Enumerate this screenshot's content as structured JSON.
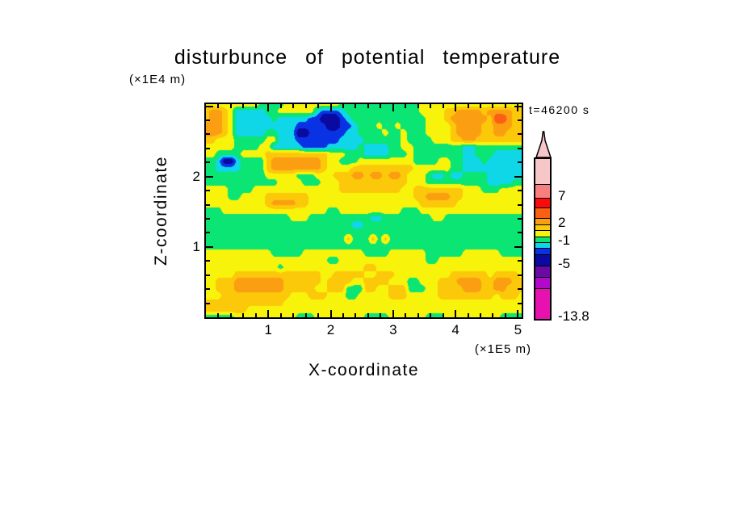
{
  "title": "disturbunce of potential temperature",
  "time_label": "t=46200 s",
  "axes": {
    "x": {
      "label": "X-coordinate",
      "unit": "(×1E5 m)",
      "max": 5.06,
      "minor_step": 0.2,
      "major_ticks": [
        "1",
        "2",
        "3",
        "4",
        "5"
      ]
    },
    "z": {
      "label": "Z-coordinate",
      "unit": "(×1E4 m)",
      "max": 3.03,
      "minor_step": 0.2,
      "major_ticks": [
        "1",
        "2"
      ]
    }
  },
  "colorbar": {
    "arrow_fill": "#f7c6c9",
    "segments": [
      {
        "color": "#f7c6c9",
        "h": 31
      },
      {
        "color": "#f87f7f",
        "h": 17
      },
      {
        "color": "#fa0a0a",
        "h": 12
      },
      {
        "color": "#fa5f14",
        "h": 13
      },
      {
        "color": "#fb9e12",
        "h": 8
      },
      {
        "color": "#fcc80a",
        "h": 7
      },
      {
        "color": "#f8f30a",
        "h": 8
      },
      {
        "color": "#0ae574",
        "h": 7
      },
      {
        "color": "#0fd7e8",
        "h": 7
      },
      {
        "color": "#0a32e5",
        "h": 8
      },
      {
        "color": "#0a0aa0",
        "h": 14
      },
      {
        "color": "#6a0aa5",
        "h": 14
      },
      {
        "color": "#b00ac8",
        "h": 14
      },
      {
        "color": "#e611ae",
        "h": 38
      }
    ],
    "labels": [
      {
        "text": "7",
        "y": 48
      },
      {
        "text": "2",
        "y": 81
      },
      {
        "text": "-1",
        "y": 103
      },
      {
        "text": "-5",
        "y": 132
      },
      {
        "text": "-13.8",
        "y": 197
      }
    ]
  },
  "chart_data": {
    "type": "heatmap",
    "subtype": "filled_contour",
    "title": "disturbunce of potential temperature",
    "xlabel": "X-coordinate (×1E5 m)",
    "ylabel": "Z-coordinate (×1E4 m)",
    "time_annotation": "t=46200 s",
    "x_range": [
      0,
      5.06
    ],
    "z_range": [
      0,
      3.03
    ],
    "x_major_ticks": [
      1,
      2,
      3,
      4,
      5
    ],
    "z_major_ticks": [
      1,
      2
    ],
    "colorbar_labeled_levels": [
      7,
      2,
      -1,
      -5,
      -13.8
    ],
    "levels": [
      -9,
      -7,
      -5,
      -3,
      -2,
      -1,
      0,
      1,
      2,
      3,
      5,
      7,
      9
    ],
    "level_colors": [
      "#e611ae",
      "#b00ac8",
      "#6a0aa5",
      "#0a0aa0",
      "#0a32e5",
      "#0fd7e8",
      "#0ae574",
      "#f8f30a",
      "#fcc80a",
      "#fb9e12",
      "#fa5f14",
      "#fa0a0a",
      "#f87f7f",
      "#f7c6c9"
    ],
    "grid": {
      "cols": 52,
      "rows": 31,
      "x_step": 0.1,
      "z_step": 0.1,
      "order": "top_row_is_z_max",
      "encoding": {
        "g": -0.5,
        "y": 0.5,
        "G": 1.5,
        "o": 2.5,
        "O": 4,
        "c": -1.5,
        "b": -2.5,
        "n": -4
      },
      "values": [
        "yyyyyyyyyggggyyyyyyyyygggggggggggggyyyyyyyyyyyyyyyyy",
        "GooGycccccggyyyyyycbbbcggggggggggggyyyyGGooooGooooGG",
        "GooGyccccccgcccccbbnnnbcggggggggggggyyyGooooooGOOoGG",
        "oooGyccccccccccbbbbbnnbbcgggyggyggggyyyyGooooGGoooGG",
        "oooGycccccggcccnnbbbbbbccggggyggygggyyyyGooooGGooGGG",
        "GGyyygggggyycccbbbbbbbccccggggggyggggyyyGGooGGGGGGGG",
        "yyyyyggggyycccccbbbbcccccgccccggyyggggggggccgggggggg",
        "yyggggyyyyGGGGGGGGGGyyygggccccgggyggggggggccgggccccc",
        "ggcnncggggGooooooooGyygggyyyyyyyyyggggyyggcccgcccccc",
        "ggccccggggGooooooooGyyyyGGGGGGGGGGyyyyyyggcccccccccc",
        "ggggggggggyyyyygggyyyGGGooGooGooGyyygccgccggggcccccc",
        "ggggggggggggyyyygggyyyGGGGGGGGGGGyyyggggggggggccccgg",
        "yyyyggggyyyyyyyyyyyyyyGGGGGGGGGGyyGGGGGGGGyyygggyyyy",
        "yyyyggyyyyGGGGGGGyyyyyyyyyyyyyyyyyGGooooGGyyyyyyyyyy",
        "yyyyyyyyyyGooooGGyyyyyyyyyyyyyyyyyyGGGGGGyyyyyyyyyyy",
        "gggyyyyyyyyyyyyyyyyyggyyyyyyyyyygggyyyyyyyyyyyyyyyyy",
        "ggggggggggggggyyyggggggggggccggggggggyyggggggggggggg",
        "ggggggggggggggggggggggggccgggggggggggggggggggggggggg",
        "gggggggggggggggggggggggggggggggggggggggggggggggggggg",
        "gggggggggggggggggggggggGgggGgGgggggggggggggggggggggg",
        "gggggggggggggggggggggggggggggggggggggggggggggggggggg",
        "yyyyyyyyyyygggggyyyyyyyyyyggggyyyyyyggggggyyyyyygggg",
        "yyyyyyyyyyyyyyyyyyyyggyyyyyyyyyyyyyyggyyyyyyyyyyyyyy",
        "yyyyyyyyyyyygyyyyyyyyyyyyyGGyyyyyyyyyyyyyyyyyyyyyyyy",
        "yyyyyGGGGGGGGGGGGGGyyGGGGGyyGGGyyyyyyyyyGGGGGGyGGGGy",
        "yyGGGooooooooGGGGGGyGGGGyyGGGGyyyggyyyGGGooooGGoooGG",
        "yyGGGooooooooGGGGGyyGGGgggGGyyGGGgggyyGGGGoooGGooGGG",
        "yyyGGGGGGGGGGGyyyGGGyyyggyyyyyGGGyyyyyGGGGGGGGGyGGGy",
        "GGGGGGGGGGGGGyyyyyyyyyyyyyyyyyyyyyyyyyyyyyyyyyyyyyyy",
        "GGGGGGGyyyyyyyyyyyyyyyyyyyyyyyyyyyyyyyyyyyyyyyyyyyyy",
        "gggggyyyyyyyyyygggyyyyyyyyggggyyyyyygggyyyyyyyyygggg"
      ]
    }
  }
}
